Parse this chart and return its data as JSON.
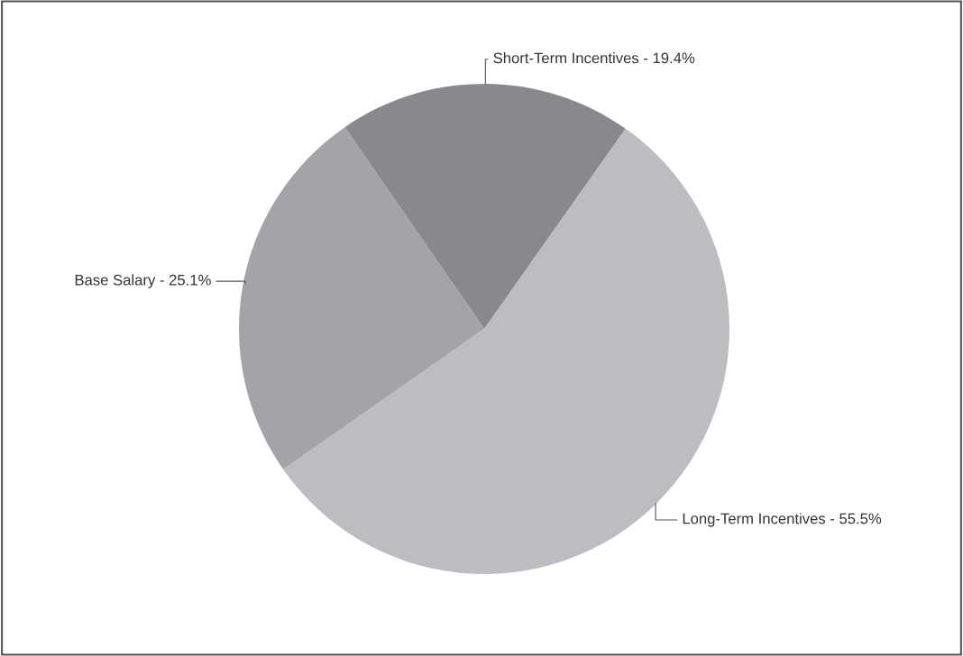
{
  "chart_data": {
    "type": "pie",
    "categories": [
      "Short-Term Incentives",
      "Base Salary",
      "Long-Term Incentives"
    ],
    "values": [
      19.4,
      25.1,
      55.5
    ],
    "value_labels": [
      "19.4%",
      "25.1%",
      "55.5%"
    ],
    "colors": [
      "#88898d",
      "#a3a4a8",
      "#bcbdc1"
    ],
    "legend": false
  }
}
